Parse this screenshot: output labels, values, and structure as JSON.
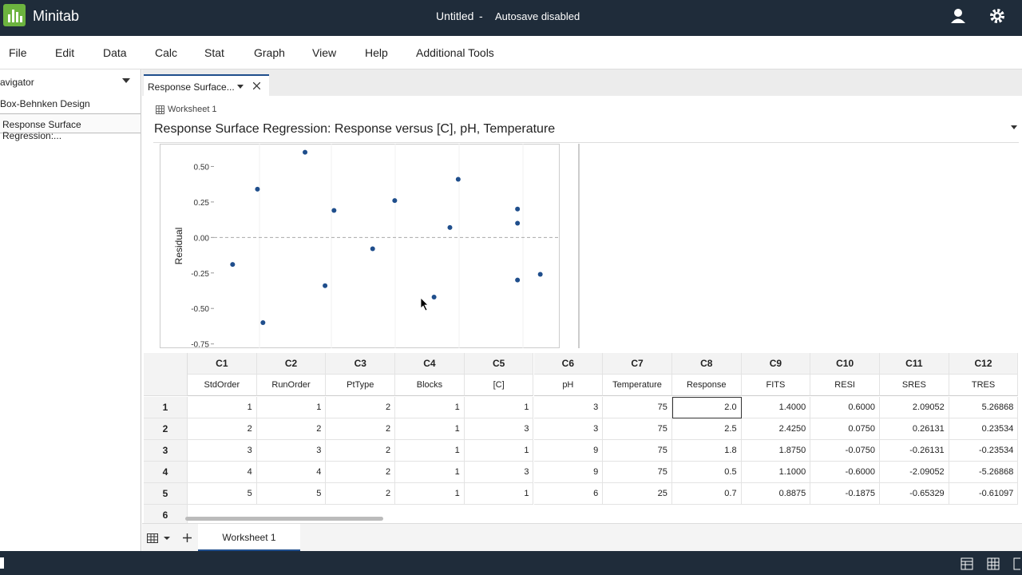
{
  "app": {
    "name": "Minitab",
    "document": "Untitled",
    "separator": "-",
    "status": "Autosave disabled"
  },
  "menu": [
    "File",
    "Edit",
    "Data",
    "Calc",
    "Stat",
    "Graph",
    "View",
    "Help",
    "Additional Tools"
  ],
  "navigator": {
    "title": "avigator",
    "items": [
      "Box-Behnken Design",
      "Response Surface Regression:..."
    ]
  },
  "output_tab": "Response Surface...",
  "worksheet_label": "Worksheet 1",
  "output_title": "Response Surface Regression: Response versus [C], pH, Temperature",
  "chart_data": {
    "type": "scatter",
    "y_label": "Residual",
    "color": "#1f4e8c",
    "x": [
      0.27,
      0.63,
      0.71,
      1.32,
      1.61,
      1.74,
      2.3,
      2.62,
      3.19,
      3.42,
      3.54,
      4.4,
      4.4,
      4.4,
      4.73
    ],
    "values": [
      -0.19,
      0.34,
      -0.6,
      0.6,
      -0.34,
      0.19,
      -0.08,
      0.26,
      -0.42,
      0.07,
      0.41,
      0.2,
      0.1,
      -0.3,
      -0.26
    ],
    "xlim": [
      0,
      5
    ],
    "ylim": [
      -0.78,
      0.66
    ],
    "yticks": [
      {
        "value": 0.5,
        "label": "0.50"
      },
      {
        "value": 0.25,
        "label": "0.25"
      },
      {
        "value": 0,
        "label": "0.00"
      },
      {
        "value": -0.25,
        "label": "-0.25"
      },
      {
        "value": -0.5,
        "label": "-0.50"
      },
      {
        "value": -0.75,
        "label": "-0.75"
      }
    ],
    "reference_line": 0
  },
  "table": {
    "columns": [
      "C1",
      "C2",
      "C3",
      "C4",
      "C5",
      "C6",
      "C7",
      "C8",
      "C9",
      "C10",
      "C11",
      "C12"
    ],
    "names": [
      "StdOrder",
      "RunOrder",
      "PtType",
      "Blocks",
      "[C]",
      "pH",
      "Temperature",
      "Response",
      "FITS",
      "RESI",
      "SRES",
      "TRES"
    ],
    "row_labels": [
      "1",
      "2",
      "3",
      "4",
      "5",
      "6"
    ],
    "rows": [
      [
        "1",
        "1",
        "2",
        "1",
        "1",
        "3",
        "75",
        "2.0",
        "1.4000",
        "0.6000",
        "2.09052",
        "5.26868"
      ],
      [
        "2",
        "2",
        "2",
        "1",
        "3",
        "3",
        "75",
        "2.5",
        "2.4250",
        "0.0750",
        "0.26131",
        "0.23534"
      ],
      [
        "3",
        "3",
        "2",
        "1",
        "1",
        "9",
        "75",
        "1.8",
        "1.8750",
        "-0.0750",
        "-0.26131",
        "-0.23534"
      ],
      [
        "4",
        "4",
        "2",
        "1",
        "3",
        "9",
        "75",
        "0.5",
        "1.1000",
        "-0.6000",
        "-2.09052",
        "-5.26868"
      ],
      [
        "5",
        "5",
        "2",
        "1",
        "1",
        "6",
        "25",
        "0.7",
        "0.8875",
        "-0.1875",
        "-0.65329",
        "-0.61097"
      ]
    ]
  },
  "sheet_tab": "Worksheet 1"
}
